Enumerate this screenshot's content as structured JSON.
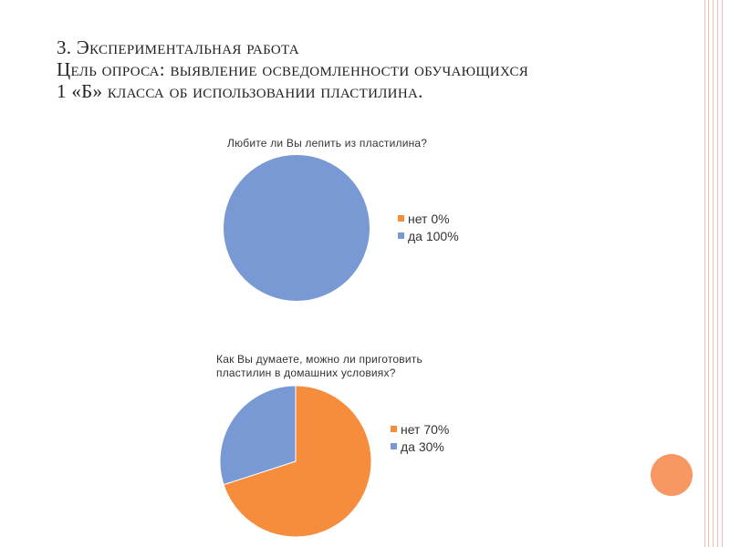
{
  "slide": {
    "title_lines": [
      "3. Экспериментальная работа",
      "Цель опроса: выявление осведомленности обучающихся",
      "1 «Б» класса об использовании пластилина."
    ]
  },
  "colors": {
    "no": "#f68d3d",
    "yes": "#7899d4",
    "frame": "#f2bfae",
    "deco": "#f79862"
  },
  "chart_data": [
    {
      "type": "pie",
      "title": "Любите ли Вы лепить из пластилина?",
      "categories": [
        "нет",
        "да"
      ],
      "values": [
        0,
        100
      ],
      "legend_labels": [
        "нет 0%",
        "да  100%"
      ],
      "legend": "right"
    },
    {
      "type": "pie",
      "title": "Как Вы думаете, можно ли приготовить пластилин в домашних условиях?",
      "title_lines": [
        "Как Вы думаете, можно ли приготовить",
        "пластилин в домашних условиях?"
      ],
      "categories": [
        "нет",
        "да"
      ],
      "values": [
        70,
        30
      ],
      "legend_labels": [
        "нет 70%",
        "да  30%"
      ],
      "legend": "right"
    }
  ]
}
